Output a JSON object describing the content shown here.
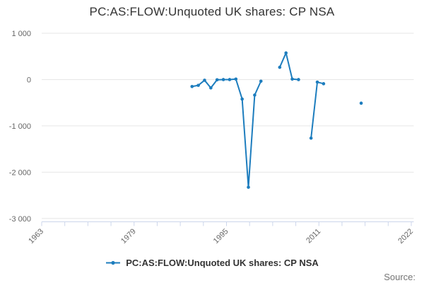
{
  "chart_data": {
    "type": "line",
    "title": "PC:AS:FLOW:Unquoted UK shares: CP NSA",
    "grid": true,
    "legend_position": "bottom",
    "x_axis": {
      "min": 1963,
      "max": 2022,
      "tick_count": 17,
      "labeled_ticks": [
        "1963",
        "1979",
        "1995",
        "2011",
        "2022"
      ],
      "labeled_tick_indices": [
        0,
        4,
        8,
        12,
        16
      ],
      "label_rotation": -45
    },
    "y_axis": {
      "min": -3000,
      "max": 1000,
      "ticks": [
        1000,
        0,
        -1000,
        -2000,
        -3000
      ],
      "tick_labels": [
        "1 000",
        "0",
        "-1 000",
        "-2 000",
        "-3 000"
      ]
    },
    "series": [
      {
        "name": "PC:AS:FLOW:Unquoted UK shares: CP NSA",
        "color": "#1d7dbe",
        "marker": "circle",
        "segments": [
          [
            [
              1987,
              -150
            ],
            [
              1988,
              -125
            ],
            [
              1989,
              -15
            ],
            [
              1990,
              -180
            ],
            [
              1991,
              -5
            ],
            [
              1992,
              0
            ],
            [
              1993,
              0
            ],
            [
              1994,
              10
            ],
            [
              1995,
              -420
            ],
            [
              1996,
              -2325
            ],
            [
              1997,
              -335
            ],
            [
              1998,
              -35
            ]
          ],
          [
            [
              2001,
              265
            ],
            [
              2002,
              575
            ],
            [
              2003,
              10
            ],
            [
              2004,
              0
            ]
          ],
          [
            [
              2006,
              -1265
            ],
            [
              2007,
              -55
            ],
            [
              2008,
              -90
            ]
          ],
          [
            [
              2014,
              -510
            ]
          ]
        ]
      }
    ]
  },
  "legend": {
    "item_label": "PC:AS:FLOW:Unquoted UK shares: CP NSA"
  },
  "footer": {
    "source_label": "Source:"
  },
  "colors": {
    "line": "#1d7dbe",
    "grid": "#e6e6e6",
    "axis": "#ccd6eb",
    "tick_label": "#666666",
    "title": "#333333",
    "legend_text": "#333333",
    "source_text": "#757575"
  }
}
